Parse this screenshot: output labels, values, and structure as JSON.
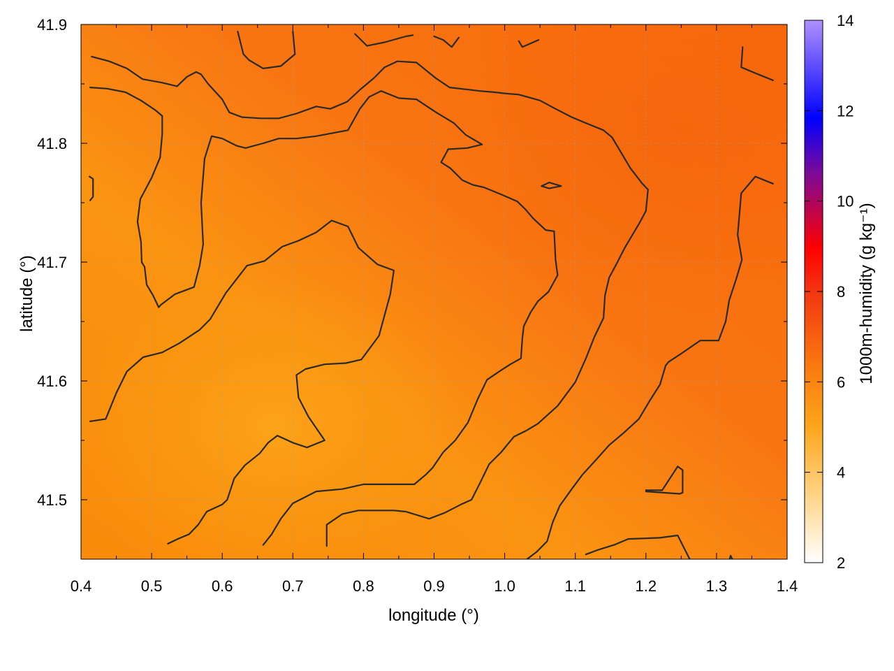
{
  "chart_data": {
    "type": "heatmap",
    "title": "",
    "xlabel": "longitude (°)",
    "ylabel": "latitude (°)",
    "colorbar_label": "1000m-humidity (g kg⁻¹)",
    "xlim": [
      0.4,
      1.4
    ],
    "ylim": [
      41.45,
      41.9
    ],
    "clim": [
      2,
      14
    ],
    "x_ticks": [
      "0.4",
      "0.5",
      "0.6",
      "0.7",
      "0.8",
      "0.9",
      "1.0",
      "1.1",
      "1.2",
      "1.3",
      "1.4"
    ],
    "y_ticks": [
      "41.5",
      "41.6",
      "41.7",
      "41.8",
      "41.9"
    ],
    "colorbar_ticks": [
      "2",
      "4",
      "6",
      "8",
      "10",
      "12",
      "14"
    ],
    "grid": true,
    "field_description": "humidity mostly 5–6 g/kg; lower (~4.6) around lon 0.55–0.75, lat 41.5–41.6; higher (~6.5) toward east/northeast",
    "contour_lines": [
      [
        [
          0.415,
          41.873
        ],
        [
          0.44,
          41.869
        ],
        [
          0.465,
          41.863
        ],
        [
          0.487,
          41.854
        ],
        [
          0.515,
          41.851
        ],
        [
          0.536,
          41.848
        ],
        [
          0.55,
          41.856
        ],
        [
          0.563,
          41.86
        ],
        [
          0.57,
          41.858
        ],
        [
          0.58,
          41.85
        ],
        [
          0.6,
          41.837
        ],
        [
          0.61,
          41.826
        ],
        [
          0.628,
          41.822
        ],
        [
          0.655,
          41.821
        ],
        [
          0.68,
          41.821
        ],
        [
          0.705,
          41.825
        ],
        [
          0.733,
          41.831
        ],
        [
          0.753,
          41.829
        ],
        [
          0.777,
          41.835
        ],
        [
          0.795,
          41.845
        ],
        [
          0.815,
          41.855
        ],
        [
          0.83,
          41.864
        ],
        [
          0.848,
          41.869
        ],
        [
          0.875,
          41.868
        ],
        [
          0.902,
          41.855
        ],
        [
          0.922,
          41.847
        ],
        [
          0.965,
          41.844
        ],
        [
          0.985,
          41.843
        ],
        [
          1.0,
          41.842
        ],
        [
          1.02,
          41.841
        ],
        [
          1.05,
          41.836
        ],
        [
          1.072,
          41.829
        ],
        [
          1.095,
          41.822
        ],
        [
          1.115,
          41.817
        ],
        [
          1.14,
          41.811
        ],
        [
          1.152,
          41.805
        ],
        [
          1.16,
          41.797
        ],
        [
          1.178,
          41.779
        ],
        [
          1.195,
          41.766
        ],
        [
          1.203,
          41.761
        ],
        [
          1.2,
          41.743
        ],
        [
          1.19,
          41.732
        ],
        [
          1.185,
          41.727
        ],
        [
          1.17,
          41.712
        ],
        [
          1.158,
          41.698
        ],
        [
          1.148,
          41.687
        ],
        [
          1.142,
          41.672
        ],
        [
          1.14,
          41.653
        ],
        [
          1.127,
          41.637
        ],
        [
          1.115,
          41.619
        ],
        [
          1.1,
          41.599
        ],
        [
          1.075,
          41.579
        ],
        [
          1.06,
          41.571
        ],
        [
          1.047,
          41.564
        ],
        [
          1.03,
          41.558
        ],
        [
          1.013,
          41.553
        ],
        [
          0.995,
          41.54
        ],
        [
          0.978,
          41.53
        ],
        [
          0.965,
          41.514
        ],
        [
          0.953,
          41.5
        ],
        [
          0.938,
          41.496
        ],
        [
          0.915,
          41.489
        ],
        [
          0.893,
          41.484
        ],
        [
          0.86,
          41.49
        ],
        [
          0.843,
          41.491
        ],
        [
          0.793,
          41.491
        ],
        [
          0.77,
          41.488
        ],
        [
          0.748,
          41.479
        ],
        [
          0.748,
          41.461
        ]
      ],
      [
        [
          0.413,
          41.847
        ],
        [
          0.437,
          41.846
        ],
        [
          0.463,
          41.843
        ],
        [
          0.485,
          41.836
        ],
        [
          0.505,
          41.828
        ],
        [
          0.515,
          41.823
        ],
        [
          0.515,
          41.808
        ],
        [
          0.512,
          41.788
        ],
        [
          0.5,
          41.771
        ],
        [
          0.484,
          41.753
        ],
        [
          0.48,
          41.734
        ],
        [
          0.485,
          41.717
        ],
        [
          0.486,
          41.7
        ],
        [
          0.49,
          41.696
        ],
        [
          0.493,
          41.681
        ],
        [
          0.502,
          41.672
        ],
        [
          0.51,
          41.662
        ],
        [
          0.513,
          41.664
        ],
        [
          0.533,
          41.673
        ],
        [
          0.56,
          41.679
        ],
        [
          0.568,
          41.697
        ],
        [
          0.573,
          41.715
        ],
        [
          0.57,
          41.75
        ],
        [
          0.575,
          41.787
        ],
        [
          0.585,
          41.806
        ],
        [
          0.6,
          41.804
        ],
        [
          0.62,
          41.798
        ],
        [
          0.633,
          41.796
        ],
        [
          0.658,
          41.8
        ],
        [
          0.68,
          41.804
        ],
        [
          0.705,
          41.804
        ],
        [
          0.733,
          41.806
        ],
        [
          0.76,
          41.809
        ],
        [
          0.778,
          41.811
        ],
        [
          0.795,
          41.829
        ],
        [
          0.808,
          41.839
        ],
        [
          0.825,
          41.844
        ],
        [
          0.85,
          41.838
        ],
        [
          0.875,
          41.837
        ],
        [
          0.903,
          41.826
        ],
        [
          0.928,
          41.817
        ],
        [
          0.945,
          41.807
        ],
        [
          0.968,
          41.799
        ],
        [
          0.947,
          41.796
        ],
        [
          0.92,
          41.795
        ],
        [
          0.91,
          41.784
        ],
        [
          0.923,
          41.779
        ],
        [
          0.94,
          41.769
        ],
        [
          0.955,
          41.765
        ],
        [
          0.97,
          41.763
        ],
        [
          0.995,
          41.757
        ],
        [
          1.018,
          41.751
        ],
        [
          1.03,
          41.744
        ],
        [
          1.04,
          41.737
        ],
        [
          1.058,
          41.727
        ],
        [
          1.07,
          41.726
        ],
        [
          1.072,
          41.702
        ],
        [
          1.075,
          41.689
        ],
        [
          1.062,
          41.675
        ],
        [
          1.047,
          41.667
        ],
        [
          1.037,
          41.658
        ],
        [
          1.027,
          41.646
        ],
        [
          1.025,
          41.636
        ],
        [
          1.023,
          41.619
        ],
        [
          1.008,
          41.614
        ],
        [
          0.995,
          41.609
        ],
        [
          0.975,
          41.601
        ],
        [
          0.962,
          41.585
        ],
        [
          0.948,
          41.565
        ],
        [
          0.93,
          41.55
        ],
        [
          0.913,
          41.54
        ],
        [
          0.898,
          41.527
        ],
        [
          0.888,
          41.521
        ],
        [
          0.872,
          41.513
        ],
        [
          0.85,
          41.513
        ],
        [
          0.8,
          41.513
        ],
        [
          0.77,
          41.509
        ],
        [
          0.733,
          41.507
        ],
        [
          0.7,
          41.497
        ],
        [
          0.683,
          41.484
        ],
        [
          0.67,
          41.471
        ],
        [
          0.658,
          41.462
        ]
      ],
      [
        [
          0.413,
          41.566
        ],
        [
          0.435,
          41.568
        ],
        [
          0.45,
          41.59
        ],
        [
          0.465,
          41.608
        ],
        [
          0.488,
          41.62
        ],
        [
          0.515,
          41.624
        ],
        [
          0.54,
          41.632
        ],
        [
          0.568,
          41.643
        ],
        [
          0.583,
          41.652
        ],
        [
          0.605,
          41.674
        ],
        [
          0.635,
          41.697
        ],
        [
          0.66,
          41.701
        ],
        [
          0.685,
          41.713
        ],
        [
          0.708,
          41.718
        ],
        [
          0.733,
          41.725
        ],
        [
          0.755,
          41.735
        ],
        [
          0.778,
          41.73
        ],
        [
          0.793,
          41.712
        ],
        [
          0.82,
          41.698
        ],
        [
          0.843,
          41.693
        ],
        [
          0.838,
          41.673
        ],
        [
          0.822,
          41.638
        ],
        [
          0.797,
          41.618
        ],
        [
          0.775,
          41.615
        ],
        [
          0.745,
          41.614
        ],
        [
          0.718,
          41.61
        ],
        [
          0.705,
          41.605
        ],
        [
          0.708,
          41.586
        ],
        [
          0.722,
          41.57
        ],
        [
          0.745,
          41.55
        ],
        [
          0.72,
          41.544
        ],
        [
          0.7,
          41.548
        ],
        [
          0.678,
          41.554
        ],
        [
          0.665,
          41.548
        ],
        [
          0.653,
          41.539
        ],
        [
          0.632,
          41.529
        ],
        [
          0.617,
          41.518
        ],
        [
          0.607,
          41.5
        ],
        [
          0.6,
          41.496
        ],
        [
          0.578,
          41.49
        ],
        [
          0.566,
          41.479
        ],
        [
          0.553,
          41.471
        ],
        [
          0.537,
          41.467
        ],
        [
          0.523,
          41.463
        ]
      ],
      [
        [
          0.622,
          41.894
        ],
        [
          0.63,
          41.875
        ],
        [
          0.638,
          41.87
        ],
        [
          0.658,
          41.863
        ],
        [
          0.683,
          41.865
        ],
        [
          0.703,
          41.875
        ],
        [
          0.7,
          41.894
        ]
      ],
      [
        [
          0.788,
          41.892
        ],
        [
          0.805,
          41.882
        ],
        [
          0.83,
          41.885
        ],
        [
          0.86,
          41.89
        ],
        [
          0.87,
          41.891
        ]
      ],
      [
        [
          0.9,
          41.89
        ],
        [
          0.913,
          41.887
        ],
        [
          0.925,
          41.881
        ],
        [
          0.935,
          41.889
        ]
      ],
      [
        [
          1.02,
          41.886
        ],
        [
          1.025,
          41.881
        ],
        [
          1.048,
          41.887
        ]
      ],
      [
        [
          0.412,
          41.772
        ],
        [
          0.417,
          41.77
        ],
        [
          0.417,
          41.755
        ],
        [
          0.413,
          41.752
        ]
      ],
      [
        [
          1.052,
          41.764
        ],
        [
          1.063,
          41.767
        ],
        [
          1.08,
          41.764
        ],
        [
          1.063,
          41.762
        ],
        [
          1.052,
          41.764
        ]
      ],
      [
        [
          1.337,
          41.881
        ],
        [
          1.335,
          41.864
        ],
        [
          1.355,
          41.859
        ],
        [
          1.38,
          41.853
        ]
      ],
      [
        [
          1.38,
          41.766
        ],
        [
          1.355,
          41.772
        ],
        [
          1.335,
          41.758
        ],
        [
          1.33,
          41.723
        ],
        [
          1.336,
          41.702
        ],
        [
          1.328,
          41.686
        ],
        [
          1.318,
          41.668
        ],
        [
          1.313,
          41.65
        ],
        [
          1.303,
          41.634
        ],
        [
          1.277,
          41.634
        ],
        [
          1.25,
          41.623
        ],
        [
          1.232,
          41.616
        ],
        [
          1.228,
          41.613
        ],
        [
          1.22,
          41.597
        ],
        [
          1.205,
          41.583
        ],
        [
          1.19,
          41.568
        ],
        [
          1.168,
          41.556
        ],
        [
          1.148,
          41.546
        ],
        [
          1.13,
          41.534
        ],
        [
          1.11,
          41.521
        ],
        [
          1.095,
          41.509
        ],
        [
          1.078,
          41.495
        ],
        [
          1.068,
          41.481
        ],
        [
          1.06,
          41.465
        ],
        [
          1.045,
          41.456
        ],
        [
          1.025,
          41.447
        ]
      ],
      [
        [
          1.2,
          41.508
        ],
        [
          1.223,
          41.508
        ],
        [
          1.245,
          41.528
        ],
        [
          1.252,
          41.525
        ],
        [
          1.252,
          41.506
        ],
        [
          1.248,
          41.505
        ],
        [
          1.2,
          41.507
        ]
      ],
      [
        [
          1.115,
          41.454
        ],
        [
          1.133,
          41.458
        ],
        [
          1.155,
          41.462
        ],
        [
          1.175,
          41.467
        ],
        [
          1.22,
          41.468
        ],
        [
          1.245,
          41.47
        ],
        [
          1.262,
          41.45
        ]
      ],
      [
        [
          1.318,
          41.449
        ],
        [
          1.32,
          41.453
        ],
        [
          1.323,
          41.449
        ]
      ]
    ]
  }
}
